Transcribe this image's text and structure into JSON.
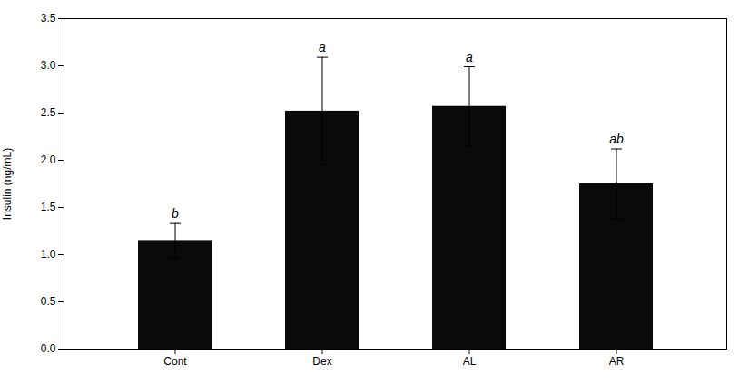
{
  "chart_data": {
    "type": "bar",
    "categories": [
      "Cont",
      "Dex",
      "AL",
      "AR"
    ],
    "values": [
      1.15,
      2.52,
      2.57,
      1.75
    ],
    "errors": [
      0.18,
      0.57,
      0.42,
      0.37
    ],
    "letters": [
      "b",
      "a",
      "a",
      "ab"
    ],
    "color": "#0a0a0a",
    "ylabel": "Insulin (ng/mL)",
    "ylim": [
      0,
      3.5
    ],
    "yticks": [
      {
        "value": 0,
        "label": "0.0"
      },
      0.5,
      {
        "value": 1,
        "label": "1.0"
      },
      1.5,
      {
        "value": 2,
        "label": "2.0"
      },
      2.5,
      {
        "value": 3,
        "label": "3.0"
      },
      3.5
    ],
    "grid": false
  }
}
